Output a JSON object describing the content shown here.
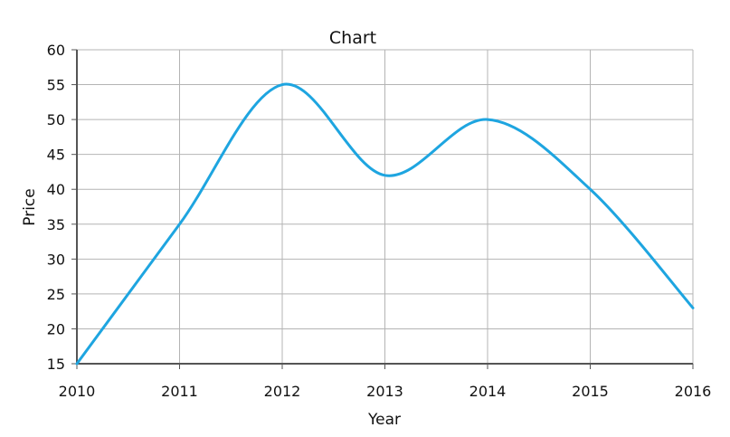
{
  "chart_data": {
    "type": "line",
    "title": "Chart",
    "xlabel": "Year",
    "ylabel": "Price",
    "xlim": [
      2010,
      2016
    ],
    "ylim": [
      15,
      60
    ],
    "x_ticks": [
      "2010",
      "2011",
      "2012",
      "2013",
      "2014",
      "2015",
      "2016"
    ],
    "y_ticks": [
      "15",
      "20",
      "25",
      "30",
      "35",
      "40",
      "45",
      "50",
      "55",
      "60"
    ],
    "grid": true,
    "smooth": true,
    "series_color": "#1ea5e0",
    "series": [
      {
        "x": [
          2010,
          2011,
          2012,
          2013,
          2014,
          2015,
          2016
        ],
        "values": [
          15,
          35,
          55,
          42,
          50,
          40,
          23
        ]
      }
    ]
  }
}
